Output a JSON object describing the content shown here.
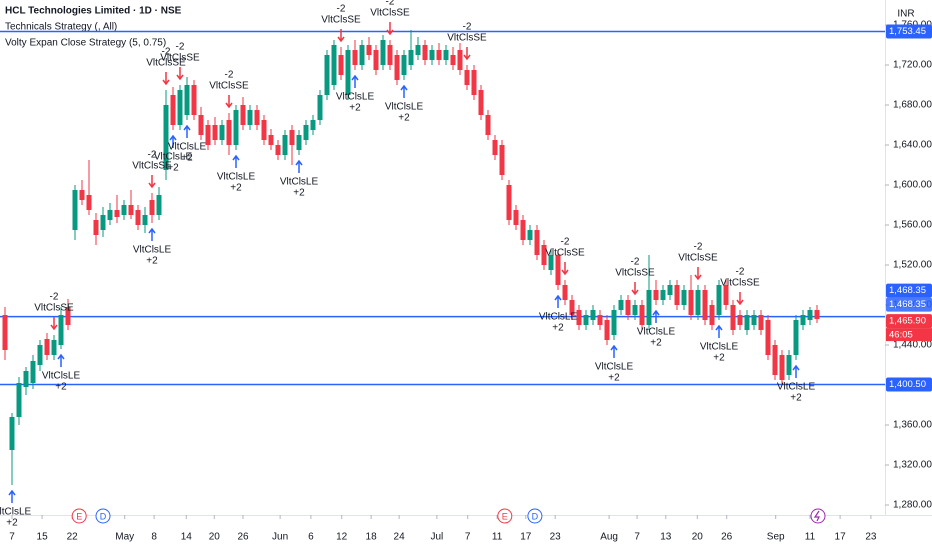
{
  "chart_data": {
    "type": "candlestick",
    "legend_lines": [
      "HCL Technologies Limited · 1D · NSE",
      "Technicals Strategy (, All)",
      "Volty Expan Close Strategy (5, 0.75)"
    ],
    "currency": "INR",
    "up_color": "#089981",
    "down_color": "#f23645",
    "ylim": [
      1270,
      1785
    ],
    "yticks": [
      {
        "value": 1280,
        "label": "1,280.00"
      },
      {
        "value": 1320,
        "label": "1,320.00"
      },
      {
        "value": 1360,
        "label": "1,360.00"
      },
      {
        "value": 1400,
        "label": "1,400.00"
      },
      {
        "value": 1440,
        "label": "1,440.00"
      },
      {
        "value": 1480,
        "label": "1,480.00"
      },
      {
        "value": 1520,
        "label": "1,520.00"
      },
      {
        "value": 1560,
        "label": "1,560.00"
      },
      {
        "value": 1600,
        "label": "1,600.00"
      },
      {
        "value": 1640,
        "label": "1,640.00"
      },
      {
        "value": 1680,
        "label": "1,680.00"
      },
      {
        "value": 1720,
        "label": "1,720.00"
      },
      {
        "value": 1760,
        "label": "1,760.00"
      }
    ],
    "xticks": [
      {
        "value": 1,
        "label": "7"
      },
      {
        "value": 5.3,
        "label": "15"
      },
      {
        "value": 9.6,
        "label": "22"
      },
      {
        "value": 17.1,
        "label": "May"
      },
      {
        "value": 21.3,
        "label": "8"
      },
      {
        "value": 25.9,
        "label": "14"
      },
      {
        "value": 29.9,
        "label": "20"
      },
      {
        "value": 34,
        "label": "26"
      },
      {
        "value": 39.3,
        "label": "Jun"
      },
      {
        "value": 43.7,
        "label": "6"
      },
      {
        "value": 48.1,
        "label": "12"
      },
      {
        "value": 52.3,
        "label": "18"
      },
      {
        "value": 56.3,
        "label": "24"
      },
      {
        "value": 61.7,
        "label": "Jul"
      },
      {
        "value": 66.1,
        "label": "7"
      },
      {
        "value": 70.3,
        "label": "11"
      },
      {
        "value": 74.4,
        "label": "17"
      },
      {
        "value": 78.6,
        "label": "23"
      },
      {
        "value": 86.3,
        "label": "Aug"
      },
      {
        "value": 90.3,
        "label": "7"
      },
      {
        "value": 94.4,
        "label": "13"
      },
      {
        "value": 98.9,
        "label": "20"
      },
      {
        "value": 103.1,
        "label": "26"
      },
      {
        "value": 110.1,
        "label": "Sep"
      },
      {
        "value": 115,
        "label": "11"
      },
      {
        "value": 119.3,
        "label": "17"
      },
      {
        "value": 123.7,
        "label": "23"
      }
    ],
    "candles": [
      [
        1470,
        1478,
        1425,
        1435
      ],
      [
        1335,
        1372,
        1300,
        1368
      ],
      [
        1368,
        1408,
        1360,
        1402
      ],
      [
        1398,
        1418,
        1390,
        1414
      ],
      [
        1402,
        1430,
        1396,
        1424
      ],
      [
        1420,
        1445,
        1414,
        1440
      ],
      [
        1446,
        1452,
        1425,
        1430
      ],
      [
        1430,
        1450,
        1425,
        1445
      ],
      [
        1440,
        1478,
        1436,
        1470
      ],
      [
        1478,
        1486,
        1455,
        1460
      ],
      [
        1555,
        1600,
        1545,
        1595
      ],
      [
        1595,
        1605,
        1580,
        1585
      ],
      [
        1590,
        1625,
        1570,
        1575
      ],
      [
        1565,
        1572,
        1540,
        1550
      ],
      [
        1555,
        1578,
        1548,
        1570
      ],
      [
        1565,
        1582,
        1560,
        1575
      ],
      [
        1575,
        1590,
        1562,
        1568
      ],
      [
        1570,
        1585,
        1565,
        1580
      ],
      [
        1580,
        1595,
        1566,
        1570
      ],
      [
        1575,
        1580,
        1555,
        1560
      ],
      [
        1560,
        1578,
        1552,
        1570
      ],
      [
        1585,
        1592,
        1562,
        1570
      ],
      [
        1570,
        1598,
        1565,
        1590
      ],
      [
        1615,
        1695,
        1605,
        1680
      ],
      [
        1690,
        1698,
        1655,
        1660
      ],
      [
        1660,
        1700,
        1655,
        1695
      ],
      [
        1670,
        1708,
        1665,
        1700
      ],
      [
        1700,
        1705,
        1665,
        1670
      ],
      [
        1670,
        1678,
        1645,
        1650
      ],
      [
        1660,
        1665,
        1635,
        1640
      ],
      [
        1660,
        1668,
        1640,
        1645
      ],
      [
        1645,
        1665,
        1640,
        1660
      ],
      [
        1665,
        1672,
        1630,
        1640
      ],
      [
        1640,
        1680,
        1635,
        1675
      ],
      [
        1680,
        1688,
        1655,
        1660
      ],
      [
        1660,
        1680,
        1655,
        1675
      ],
      [
        1675,
        1680,
        1655,
        1660
      ],
      [
        1665,
        1670,
        1640,
        1645
      ],
      [
        1650,
        1656,
        1635,
        1640
      ],
      [
        1640,
        1645,
        1625,
        1630
      ],
      [
        1630,
        1655,
        1625,
        1650
      ],
      [
        1655,
        1660,
        1620,
        1640
      ],
      [
        1635,
        1655,
        1630,
        1650
      ],
      [
        1645,
        1665,
        1640,
        1660
      ],
      [
        1655,
        1670,
        1650,
        1665
      ],
      [
        1665,
        1695,
        1660,
        1690
      ],
      [
        1690,
        1735,
        1685,
        1730
      ],
      [
        1700,
        1745,
        1695,
        1740
      ],
      [
        1730,
        1738,
        1705,
        1710
      ],
      [
        1690,
        1740,
        1685,
        1735
      ],
      [
        1735,
        1745,
        1715,
        1720
      ],
      [
        1720,
        1745,
        1715,
        1740
      ],
      [
        1740,
        1748,
        1725,
        1730
      ],
      [
        1735,
        1740,
        1710,
        1715
      ],
      [
        1720,
        1750,
        1715,
        1745
      ],
      [
        1740,
        1745,
        1715,
        1720
      ],
      [
        1730,
        1735,
        1700,
        1705
      ],
      [
        1710,
        1735,
        1705,
        1730
      ],
      [
        1720,
        1755,
        1715,
        1735
      ],
      [
        1730,
        1748,
        1725,
        1740
      ],
      [
        1740,
        1745,
        1720,
        1725
      ],
      [
        1725,
        1740,
        1720,
        1735
      ],
      [
        1735,
        1742,
        1720,
        1725
      ],
      [
        1725,
        1740,
        1720,
        1735
      ],
      [
        1730,
        1738,
        1715,
        1720
      ],
      [
        1735,
        1742,
        1710,
        1715
      ],
      [
        1715,
        1720,
        1695,
        1700
      ],
      [
        1715,
        1720,
        1685,
        1690
      ],
      [
        1695,
        1700,
        1665,
        1670
      ],
      [
        1670,
        1675,
        1645,
        1650
      ],
      [
        1645,
        1650,
        1625,
        1630
      ],
      [
        1640,
        1645,
        1605,
        1610
      ],
      [
        1600,
        1605,
        1560,
        1565
      ],
      [
        1575,
        1580,
        1555,
        1560
      ],
      [
        1565,
        1570,
        1540,
        1545
      ],
      [
        1545,
        1560,
        1540,
        1555
      ],
      [
        1555,
        1560,
        1525,
        1530
      ],
      [
        1540,
        1545,
        1515,
        1520
      ],
      [
        1515,
        1535,
        1510,
        1530
      ],
      [
        1530,
        1535,
        1495,
        1500
      ],
      [
        1500,
        1505,
        1480,
        1485
      ],
      [
        1485,
        1490,
        1465,
        1470
      ],
      [
        1475,
        1480,
        1455,
        1460
      ],
      [
        1460,
        1475,
        1455,
        1470
      ],
      [
        1465,
        1480,
        1460,
        1475
      ],
      [
        1470,
        1475,
        1455,
        1460
      ],
      [
        1465,
        1470,
        1440,
        1445
      ],
      [
        1450,
        1480,
        1445,
        1475
      ],
      [
        1475,
        1490,
        1470,
        1485
      ],
      [
        1485,
        1490,
        1465,
        1470
      ],
      [
        1470,
        1485,
        1465,
        1480
      ],
      [
        1480,
        1485,
        1455,
        1460
      ],
      [
        1460,
        1530,
        1455,
        1495
      ],
      [
        1495,
        1505,
        1480,
        1485
      ],
      [
        1485,
        1500,
        1480,
        1495
      ],
      [
        1490,
        1505,
        1485,
        1500
      ],
      [
        1500,
        1505,
        1475,
        1480
      ],
      [
        1480,
        1500,
        1475,
        1495
      ],
      [
        1495,
        1510,
        1465,
        1470
      ],
      [
        1470,
        1500,
        1465,
        1495
      ],
      [
        1495,
        1500,
        1460,
        1465
      ],
      [
        1480,
        1485,
        1455,
        1460
      ],
      [
        1470,
        1505,
        1465,
        1500
      ],
      [
        1500,
        1505,
        1475,
        1480
      ],
      [
        1480,
        1485,
        1450,
        1455
      ],
      [
        1470,
        1475,
        1455,
        1460
      ],
      [
        1455,
        1475,
        1450,
        1470
      ],
      [
        1460,
        1475,
        1455,
        1470
      ],
      [
        1470,
        1475,
        1450,
        1455
      ],
      [
        1465,
        1470,
        1425,
        1430
      ],
      [
        1440,
        1445,
        1405,
        1410
      ],
      [
        1430,
        1435,
        1400,
        1405
      ],
      [
        1410,
        1435,
        1405,
        1430
      ],
      [
        1430,
        1470,
        1425,
        1465
      ],
      [
        1460,
        1475,
        1455,
        1470
      ],
      [
        1465,
        1478,
        1460,
        1475
      ],
      [
        1475,
        1480,
        1462,
        1465.9
      ]
    ],
    "short_signals": [
      {
        "index": 7,
        "qty": "-2",
        "label": "VltClsSE"
      },
      {
        "index": 21,
        "qty": "-2",
        "label": "VltClsSE"
      },
      {
        "index": 23,
        "qty": "-2",
        "label": "VltClsSE"
      },
      {
        "index": 25,
        "qty": "-2",
        "label": "VltClsSE"
      },
      {
        "index": 32,
        "qty": "-2",
        "label": "VltClsSE"
      },
      {
        "index": 48,
        "qty": "-2",
        "label": "VltClsSE"
      },
      {
        "index": 55,
        "qty": "-2",
        "label": "VltClsSE"
      },
      {
        "index": 66,
        "qty": "-2",
        "label": "VltClsSE"
      },
      {
        "index": 80,
        "qty": "-2",
        "label": "VltClsSE"
      },
      {
        "index": 90,
        "qty": "-2",
        "label": "VltClsSE"
      },
      {
        "index": 99,
        "qty": "-2",
        "label": "VltClsSE"
      },
      {
        "index": 105,
        "qty": "-2",
        "label": "VltClsSE"
      }
    ],
    "long_signals": [
      {
        "index": 1,
        "qty": "+2",
        "label": "VltClsLE"
      },
      {
        "index": 8,
        "qty": "+2",
        "label": "VltClsLE"
      },
      {
        "index": 21,
        "qty": "+2",
        "label": "VltClsLE"
      },
      {
        "index": 24,
        "qty": "+2",
        "label": "VltClsLE"
      },
      {
        "index": 26,
        "qty": "+2",
        "label": "VltClsLE"
      },
      {
        "index": 33,
        "qty": "+2",
        "label": "VltClsLE"
      },
      {
        "index": 42,
        "qty": "+2",
        "label": "VltClsLE"
      },
      {
        "index": 50,
        "qty": "+2",
        "label": "VltClsLE"
      },
      {
        "index": 57,
        "qty": "+2",
        "label": "VltClsLE"
      },
      {
        "index": 79,
        "qty": "+2",
        "label": "VltClsLE"
      },
      {
        "index": 87,
        "qty": "+2",
        "label": "VltClsLE"
      },
      {
        "index": 93,
        "qty": "+2",
        "label": "VltClsLE"
      },
      {
        "index": 102,
        "qty": "+2",
        "label": "VltClsLE"
      },
      {
        "index": 113,
        "qty": "+2",
        "label": "VltClsLE"
      }
    ],
    "events": [
      {
        "index": 10.6,
        "label": "E",
        "color": "#f23645"
      },
      {
        "index": 14,
        "label": "D",
        "color": "#2962ff"
      },
      {
        "index": 71.4,
        "label": "E",
        "color": "#f23645"
      },
      {
        "index": 75.7,
        "label": "D",
        "color": "#2962ff"
      }
    ],
    "hlines": [
      {
        "value": 1753.45,
        "label": "1,753.45",
        "color": "#2962ff"
      },
      {
        "value": 1400.5,
        "label": "1,400.50",
        "color": "#2962ff"
      },
      {
        "value": 1468.35,
        "label": "1,468.35",
        "color": "#2962ff"
      }
    ],
    "price_labels": [
      {
        "value": 1468.35,
        "label": "1,468.35",
        "color": "#2962ff"
      },
      {
        "value": 1465.9,
        "label": "1,465.90",
        "color": "#f23645"
      }
    ],
    "countdown": "46:05"
  }
}
